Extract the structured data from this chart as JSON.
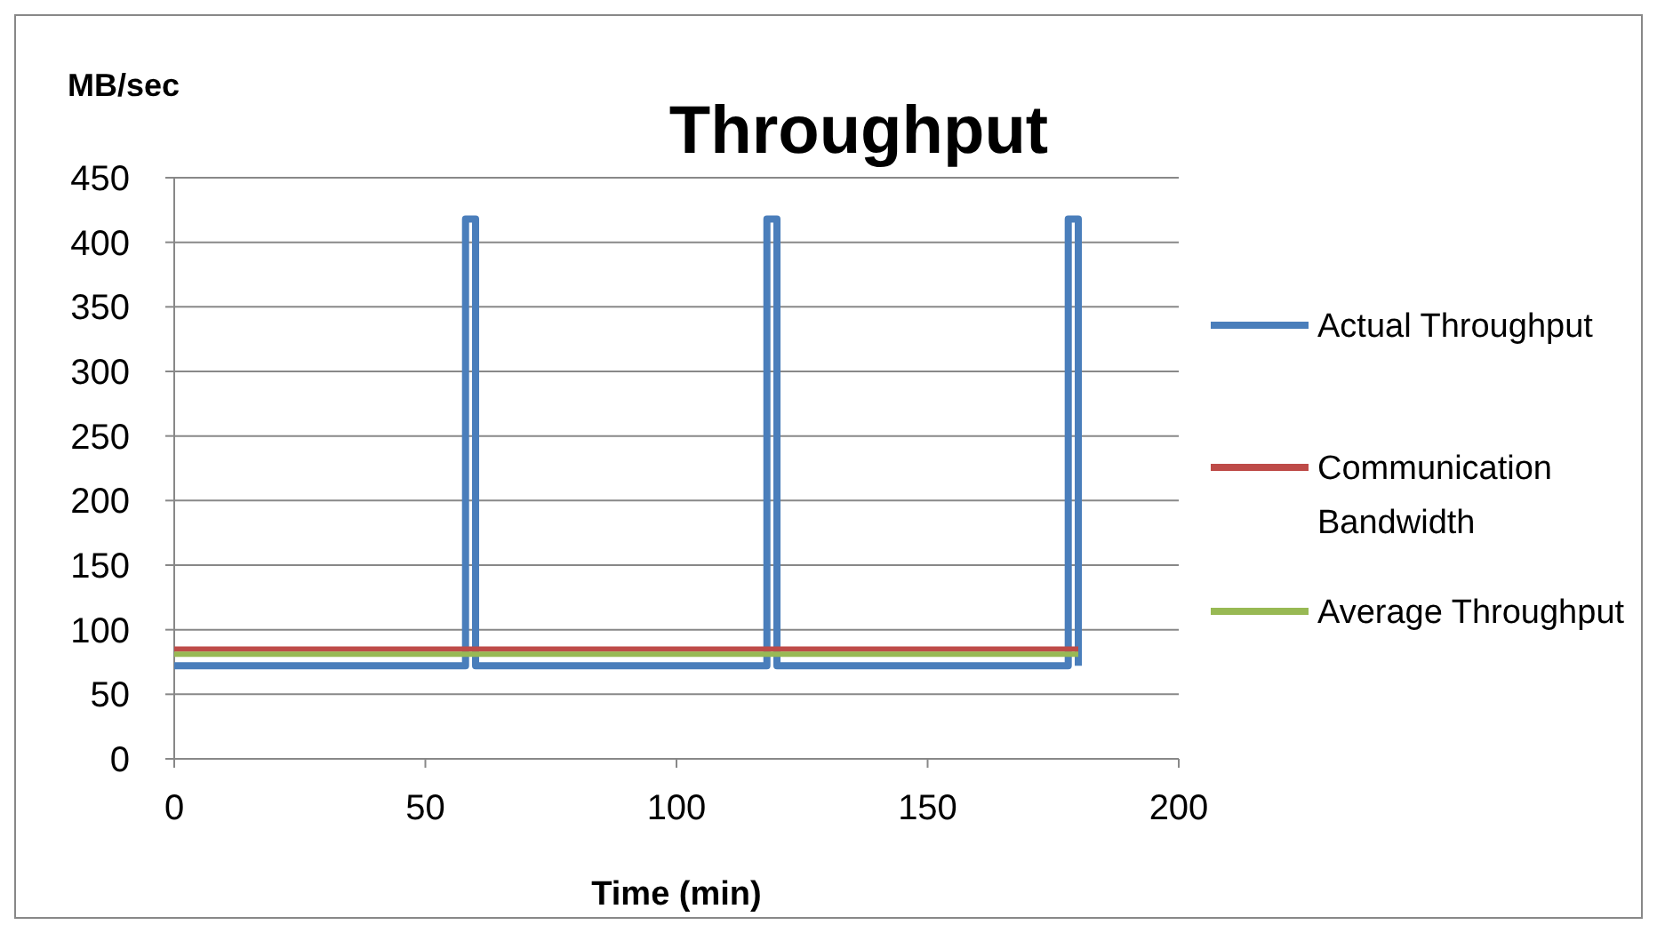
{
  "chart_data": {
    "type": "line",
    "title": "Throughput",
    "xlabel": "Time (min)",
    "ylabel": "MB/sec",
    "xlim": [
      0,
      200
    ],
    "xticks": [
      0,
      50,
      100,
      150,
      200
    ],
    "ylim": [
      0,
      450
    ],
    "yticks": [
      0,
      50,
      100,
      150,
      200,
      250,
      300,
      350,
      400,
      450
    ],
    "grid": "y",
    "legend": "right",
    "marker": "none",
    "line_style": "solid",
    "series": [
      {
        "name": "Actual Throughput",
        "color": "#4a7ebb",
        "x": [
          0,
          58,
          58,
          60,
          60,
          118,
          118,
          120,
          120,
          178,
          178,
          180,
          180
        ],
        "values": [
          72,
          72,
          418,
          418,
          72,
          72,
          418,
          418,
          72,
          72,
          418,
          418,
          72
        ]
      },
      {
        "name": "Communication Bandwidth",
        "color": "#be4b48",
        "x": [
          0,
          180
        ],
        "values": [
          85,
          85
        ]
      },
      {
        "name": "Average Throughput",
        "color": "#98b954",
        "x": [
          0,
          180
        ],
        "values": [
          81,
          81
        ]
      }
    ]
  }
}
